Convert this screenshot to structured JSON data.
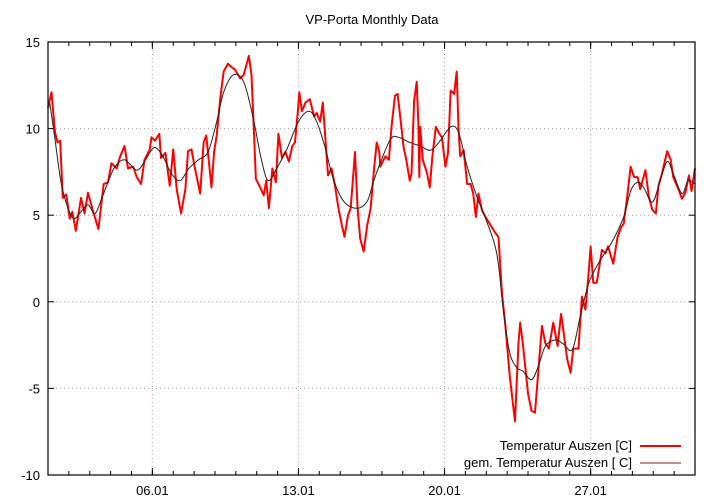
{
  "chart_data": {
    "type": "line",
    "title": "VP-Porta Monthly Data",
    "xlabel": "",
    "ylabel": "",
    "x_format": "dd.mm HH:MM",
    "xlim": [
      "01.01 00:00",
      "01.02 00:00"
    ],
    "ylim": [
      -10,
      15
    ],
    "x_ticks": [
      "06.01",
      "13.01",
      "20.01",
      "27.01"
    ],
    "y_ticks": [
      "-10",
      "-5",
      "0",
      "5",
      "10",
      "15"
    ],
    "grid": true,
    "legend_position": "bottom-right",
    "series": [
      {
        "name": "Temperatur Auszen [C]",
        "color": "#ff0000",
        "points": [
          [
            "01.01 00:00",
            11.2
          ],
          [
            "01.01 04:00",
            12.1
          ],
          [
            "01.01 08:00",
            9.8
          ],
          [
            "01.01 11:00",
            9.2
          ],
          [
            "01.01 14:00",
            9.3
          ],
          [
            "01.01 17:00",
            6.0
          ],
          [
            "01.01 21:00",
            6.2
          ],
          [
            "02.01 01:00",
            4.8
          ],
          [
            "02.01 04:00",
            5.2
          ],
          [
            "02.01 08:00",
            4.1
          ],
          [
            "02.01 14:00",
            6.0
          ],
          [
            "02.01 18:00",
            5.1
          ],
          [
            "02.01 22:00",
            6.3
          ],
          [
            "03.01 04:00",
            5.2
          ],
          [
            "03.01 10:00",
            4.2
          ],
          [
            "03.01 16:00",
            6.8
          ],
          [
            "03.01 21:00",
            6.9
          ],
          [
            "04.01 01:00",
            8.0
          ],
          [
            "04.01 07:00",
            7.7
          ],
          [
            "04.01 11:00",
            8.4
          ],
          [
            "04.01 16:00",
            9.0
          ],
          [
            "04.01 20:00",
            7.7
          ],
          [
            "05.01 02:00",
            7.8
          ],
          [
            "05.01 06:00",
            7.2
          ],
          [
            "05.01 11:00",
            6.8
          ],
          [
            "05.01 15:00",
            8.2
          ],
          [
            "05.01 21:00",
            8.8
          ],
          [
            "05.01 23:00",
            9.5
          ],
          [
            "06.01 03:00",
            9.3
          ],
          [
            "06.01 08:00",
            9.7
          ],
          [
            "06.01 10:00",
            8.3
          ],
          [
            "06.01 15:00",
            8.6
          ],
          [
            "06.01 20:00",
            6.7
          ],
          [
            "07.01 00:00",
            8.8
          ],
          [
            "07.01 04:00",
            6.5
          ],
          [
            "07.01 09:00",
            5.1
          ],
          [
            "07.01 14:00",
            6.5
          ],
          [
            "07.01 17:00",
            8.7
          ],
          [
            "07.01 21:00",
            8.8
          ],
          [
            "08.01 01:00",
            7.7
          ],
          [
            "08.01 07:00",
            6.25
          ],
          [
            "08.01 11:00",
            9.2
          ],
          [
            "08.01 14:00",
            9.6
          ],
          [
            "08.01 20:00",
            6.6
          ],
          [
            "08.01 23:00",
            8.65
          ],
          [
            "09.01 02:00",
            9.6
          ],
          [
            "09.01 06:00",
            11.7
          ],
          [
            "09.01 10:00",
            13.3
          ],
          [
            "09.01 15:00",
            13.75
          ],
          [
            "09.01 19:00",
            13.55
          ],
          [
            "09.01 23:00",
            13.4
          ],
          [
            "10.01 05:00",
            12.9
          ],
          [
            "10.01 09:00",
            13.1
          ],
          [
            "10.01 12:00",
            13.65
          ],
          [
            "10.01 15:00",
            14.2
          ],
          [
            "10.01 18:00",
            13.1
          ],
          [
            "10.01 21:00",
            9.6
          ],
          [
            "10.01 23:00",
            7.1
          ],
          [
            "11.01 05:00",
            6.5
          ],
          [
            "11.01 08:00",
            6.15
          ],
          [
            "11.01 11:00",
            7.0
          ],
          [
            "11.01 14:00",
            5.4
          ],
          [
            "11.01 18:00",
            7.7
          ],
          [
            "11.01 22:00",
            6.9
          ],
          [
            "12.01 01:00",
            9.7
          ],
          [
            "12.01 05:00",
            8.3
          ],
          [
            "12.01 09:00",
            8.65
          ],
          [
            "12.01 13:00",
            8.1
          ],
          [
            "12.01 17:00",
            9.0
          ],
          [
            "12.01 20:00",
            9.2
          ],
          [
            "12.01 23:00",
            10.8
          ],
          [
            "13.01 01:00",
            12.1
          ],
          [
            "13.01 04:00",
            11.0
          ],
          [
            "13.01 08:00",
            11.5
          ],
          [
            "13.01 13:00",
            11.7
          ],
          [
            "13.01 18:00",
            10.7
          ],
          [
            "13.01 21:00",
            10.9
          ],
          [
            "14.01 01:00",
            10.4
          ],
          [
            "14.01 04:00",
            11.5
          ],
          [
            "14.01 07:00",
            9.4
          ],
          [
            "14.01 10:00",
            7.3
          ],
          [
            "14.01 14:00",
            7.7
          ],
          [
            "14.01 18:00",
            6.7
          ],
          [
            "14.01 22:00",
            5.4
          ],
          [
            "15.01 02:00",
            4.4
          ],
          [
            "15.01 05:00",
            3.75
          ],
          [
            "15.01 09:00",
            5.0
          ],
          [
            "15.01 12:00",
            5.4
          ],
          [
            "15.01 15:00",
            7.3
          ],
          [
            "15.01 17:00",
            8.65
          ],
          [
            "15.01 20:00",
            5.4
          ],
          [
            "15.01 23:00",
            3.65
          ],
          [
            "16.01 03:00",
            2.9
          ],
          [
            "16.01 07:00",
            4.4
          ],
          [
            "16.01 11:00",
            5.4
          ],
          [
            "16.01 15:00",
            7.7
          ],
          [
            "16.01 18:00",
            9.2
          ],
          [
            "16.01 21:00",
            8.65
          ],
          [
            "16.01 22:00",
            7.8
          ],
          [
            "17.01 04:00",
            8.4
          ],
          [
            "17.01 08:00",
            8.2
          ],
          [
            "17.01 11:00",
            10.1
          ],
          [
            "17.01 15:00",
            11.9
          ],
          [
            "17.01 18:00",
            12.0
          ],
          [
            "17.01 21:00",
            10.7
          ],
          [
            "18.01 01:00",
            8.9
          ],
          [
            "18.01 04:00",
            8.2
          ],
          [
            "18.01 08:00",
            7.0
          ],
          [
            "18.01 10:00",
            7.4
          ],
          [
            "18.01 13:00",
            11.6
          ],
          [
            "18.01 16:00",
            12.7
          ],
          [
            "18.01 18:00",
            10.1
          ],
          [
            "18.01 19:00",
            7.2
          ],
          [
            "18.01 20:00",
            10.1
          ],
          [
            "18.01 23:00",
            8.2
          ],
          [
            "19.01 04:00",
            7.4
          ],
          [
            "19.01 07:00",
            6.6
          ],
          [
            "19.01 10:00",
            8.4
          ],
          [
            "19.01 14:00",
            10.1
          ],
          [
            "19.01 18:00",
            9.7
          ],
          [
            "19.01 21:00",
            9.5
          ],
          [
            "20.01 01:00",
            7.8
          ],
          [
            "20.01 04:00",
            8.6
          ],
          [
            "20.01 07:00",
            12.2
          ],
          [
            "20.01 11:00",
            12.0
          ],
          [
            "20.01 14:00",
            13.3
          ],
          [
            "20.01 16:00",
            10.1
          ],
          [
            "20.01 18:00",
            8.4
          ],
          [
            "20.01 22:00",
            8.75
          ],
          [
            "21.01 02:00",
            6.8
          ],
          [
            "21.01 06:00",
            6.8
          ],
          [
            "21.01 09:00",
            6.25
          ],
          [
            "21.01 12:00",
            4.9
          ],
          [
            "21.01 15:00",
            6.25
          ],
          [
            "21.01 19:00",
            5.3
          ],
          [
            "21.01 23:00",
            4.9
          ],
          [
            "22.01 04:00",
            4.5
          ],
          [
            "22.01 10:00",
            4.0
          ],
          [
            "22.01 14:00",
            3.75
          ],
          [
            "22.01 18:00",
            0.5
          ],
          [
            "22.01 22:00",
            -1.4
          ],
          [
            "23.01 03:00",
            -4.3
          ],
          [
            "23.01 09:00",
            -6.9
          ],
          [
            "23.01 13:00",
            -2.4
          ],
          [
            "23.01 15:00",
            -1.2
          ],
          [
            "23.01 18:00",
            -2.4
          ],
          [
            "24.01 00:00",
            -5.3
          ],
          [
            "24.01 04:00",
            -6.3
          ],
          [
            "24.01 08:00",
            -6.4
          ],
          [
            "24.01 16:00",
            -1.4
          ],
          [
            "24.01 20:00",
            -2.4
          ],
          [
            "25.01 00:00",
            -2.7
          ],
          [
            "25.01 05:00",
            -1.2
          ],
          [
            "25.01 10:00",
            -2.55
          ],
          [
            "25.01 14:00",
            -0.7
          ],
          [
            "25.01 17:00",
            -1.8
          ],
          [
            "25.01 21:00",
            -3.3
          ],
          [
            "26.01 01:00",
            -4.1
          ],
          [
            "26.01 04:00",
            -2.7
          ],
          [
            "26.01 10:00",
            -2.7
          ],
          [
            "26.01 14:00",
            0.3
          ],
          [
            "26.01 18:00",
            -0.45
          ],
          [
            "26.01 22:00",
            1.85
          ],
          [
            "27.01 00:00",
            3.2
          ],
          [
            "27.01 03:00",
            1.1
          ],
          [
            "27.01 07:00",
            1.1
          ],
          [
            "27.01 13:00",
            3.0
          ],
          [
            "27.01 17:00",
            2.8
          ],
          [
            "27.01 20:00",
            3.2
          ],
          [
            "28.01 02:00",
            2.2
          ],
          [
            "28.01 07:00",
            3.75
          ],
          [
            "28.01 11:00",
            4.3
          ],
          [
            "28.01 14:00",
            4.5
          ],
          [
            "28.01 18:00",
            6.05
          ],
          [
            "28.01 22:00",
            7.8
          ],
          [
            "29.01 02:00",
            7.2
          ],
          [
            "29.01 06:00",
            7.2
          ],
          [
            "29.01 09:00",
            6.5
          ],
          [
            "29.01 15:00",
            7.6
          ],
          [
            "29.01 19:00",
            6.05
          ],
          [
            "29.01 23:00",
            5.3
          ],
          [
            "30.01 03:00",
            5.1
          ],
          [
            "30.01 06:00",
            6.7
          ],
          [
            "30.01 10:00",
            7.4
          ],
          [
            "30.01 16:00",
            8.7
          ],
          [
            "30.01 20:00",
            8.2
          ],
          [
            "30.01 23:00",
            7.2
          ],
          [
            "31.01 05:00",
            6.5
          ],
          [
            "31.01 09:00",
            5.95
          ],
          [
            "31.01 13:00",
            6.3
          ],
          [
            "31.01 17:00",
            7.3
          ],
          [
            "31.01 20:00",
            6.4
          ],
          [
            "01.02 00:00",
            7.7
          ]
        ]
      },
      {
        "name": "gem. Temperatur Auszen [ C]",
        "color": "#000000",
        "points": [
          [
            "01.01 02:00",
            11.5
          ],
          [
            "01.01 08:00",
            9.4
          ],
          [
            "01.01 15:00",
            6.9
          ],
          [
            "01.01 23:00",
            5.4
          ],
          [
            "02.01 06:00",
            4.8
          ],
          [
            "02.01 14:00",
            5.2
          ],
          [
            "02.01 22:00",
            5.6
          ],
          [
            "03.01 06:00",
            5.1
          ],
          [
            "03.01 14:00",
            6.0
          ],
          [
            "03.01 21:00",
            6.9
          ],
          [
            "04.01 05:00",
            7.8
          ],
          [
            "04.01 16:00",
            8.2
          ],
          [
            "05.01 06:00",
            7.6
          ],
          [
            "05.01 15:00",
            8.1
          ],
          [
            "06.01 02:00",
            8.9
          ],
          [
            "06.01 12:00",
            8.4
          ],
          [
            "06.01 22:00",
            7.4
          ],
          [
            "07.01 08:00",
            7.0
          ],
          [
            "07.01 18:00",
            7.7
          ],
          [
            "08.01 05:00",
            8.2
          ],
          [
            "08.01 16:00",
            8.65
          ],
          [
            "09.01 02:00",
            10.4
          ],
          [
            "09.01 10:00",
            12.1
          ],
          [
            "09.01 21:00",
            13.1
          ],
          [
            "10.01 09:00",
            12.7
          ],
          [
            "10.01 20:00",
            10.6
          ],
          [
            "11.01 05:00",
            8.3
          ],
          [
            "11.01 13:00",
            7.0
          ],
          [
            "11.01 23:00",
            7.7
          ],
          [
            "12.01 11:00",
            8.85
          ],
          [
            "13.01 00:00",
            10.4
          ],
          [
            "13.01 12:00",
            11.0
          ],
          [
            "13.01 21:00",
            10.4
          ],
          [
            "14.01 07:00",
            8.85
          ],
          [
            "14.01 16:00",
            7.1
          ],
          [
            "15.01 04:00",
            5.8
          ],
          [
            "15.01 19:00",
            5.4
          ],
          [
            "16.01 07:00",
            5.8
          ],
          [
            "16.01 14:00",
            6.9
          ],
          [
            "16.01 22:00",
            8.0
          ],
          [
            "17.01 10:00",
            9.4
          ],
          [
            "17.01 19:00",
            9.5
          ],
          [
            "18.01 08:00",
            9.2
          ],
          [
            "18.01 20:00",
            9.0
          ],
          [
            "19.01 08:00",
            8.75
          ],
          [
            "19.01 19:00",
            9.3
          ],
          [
            "20.01 07:00",
            10.1
          ],
          [
            "20.01 16:00",
            9.8
          ],
          [
            "21.01 02:00",
            7.8
          ],
          [
            "21.01 13:00",
            6.1
          ],
          [
            "22.01 00:00",
            4.7
          ],
          [
            "22.01 12:00",
            2.8
          ],
          [
            "22.01 20:00",
            -0.65
          ],
          [
            "23.01 03:00",
            -2.95
          ],
          [
            "23.01 11:00",
            -3.8
          ],
          [
            "23.01 18:00",
            -4.0
          ],
          [
            "24.01 04:00",
            -4.5
          ],
          [
            "24.01 12:00",
            -3.7
          ],
          [
            "24.01 20:00",
            -2.55
          ],
          [
            "25.01 08:00",
            -2.2
          ],
          [
            "25.01 17:00",
            -2.45
          ],
          [
            "26.01 03:00",
            -2.75
          ],
          [
            "26.01 12:00",
            -0.85
          ],
          [
            "26.01 22:00",
            1.1
          ],
          [
            "27.01 11:00",
            2.4
          ],
          [
            "28.01 00:00",
            3.4
          ],
          [
            "28.01 14:00",
            4.9
          ],
          [
            "28.01 22:00",
            6.4
          ],
          [
            "29.01 06:00",
            6.9
          ],
          [
            "29.01 13:00",
            6.6
          ],
          [
            "29.01 23:00",
            5.75
          ],
          [
            "30.01 08:00",
            7.0
          ],
          [
            "30.01 16:00",
            8.1
          ],
          [
            "30.01 23:00",
            7.4
          ],
          [
            "31.01 09:00",
            6.25
          ],
          [
            "31.01 16:00",
            7.0
          ],
          [
            "01.02 00:00",
            6.8
          ]
        ]
      }
    ]
  }
}
